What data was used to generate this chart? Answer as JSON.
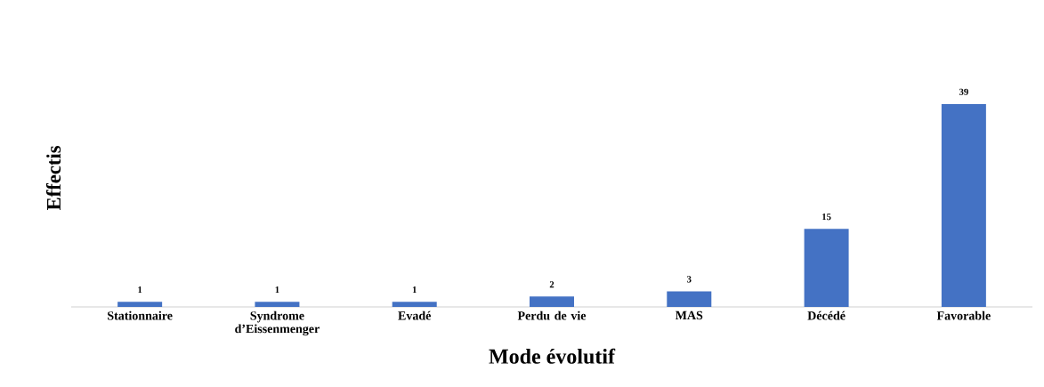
{
  "chart_data": {
    "type": "bar",
    "categories": [
      "Stationnaire",
      "Syndrome d’Eissenmenger",
      "Evadé",
      "Perdu de vie",
      "MAS",
      "Décédé",
      "Favorable"
    ],
    "values": [
      1,
      1,
      1,
      2,
      3,
      15,
      39
    ],
    "color": "#4472c4",
    "xlabel": "Mode évolutif",
    "ylabel": "Effectis",
    "data_labels": true
  }
}
